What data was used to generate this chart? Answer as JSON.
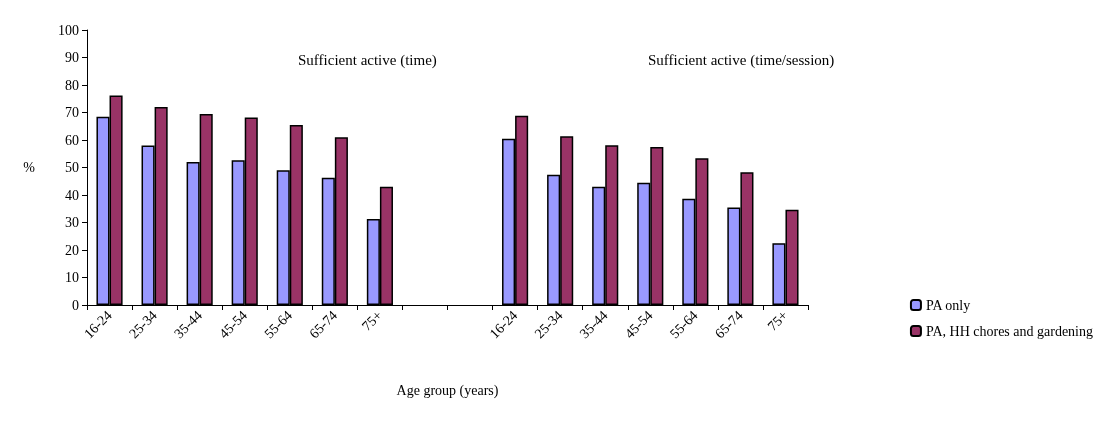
{
  "chart_data": {
    "type": "bar",
    "xlabel": "Age group (years)",
    "ylabel": "%",
    "categories": [
      "16-24",
      "25-34",
      "35-44",
      "45-54",
      "55-64",
      "65-74",
      "75+",
      null,
      null,
      "16-24",
      "25-34",
      "35-44",
      "45-54",
      "55-64",
      "65-74",
      "75+"
    ],
    "series": [
      {
        "name": "PA only",
        "color": "#9999ff",
        "values": [
          68.5,
          58,
          52,
          52.6,
          49,
          46.3,
          31.3,
          null,
          null,
          60.5,
          47.4,
          43,
          44.5,
          38.6,
          35.5,
          22.5
        ]
      },
      {
        "name": "PA, HH chores and gardening",
        "color": "#993366",
        "values": [
          76.2,
          72,
          69.5,
          68.2,
          65.5,
          61,
          43,
          null,
          null,
          68.8,
          61.4,
          58.1,
          57.5,
          53.4,
          48.3,
          34.6
        ]
      }
    ],
    "annotations": [
      "Sufficient active (time)",
      "Sufficient active (time/session)"
    ],
    "ylim": [
      0,
      100
    ],
    "yticks": [
      0,
      10,
      20,
      30,
      40,
      50,
      60,
      70,
      80,
      90,
      100
    ],
    "grid": false,
    "legend": "right"
  }
}
